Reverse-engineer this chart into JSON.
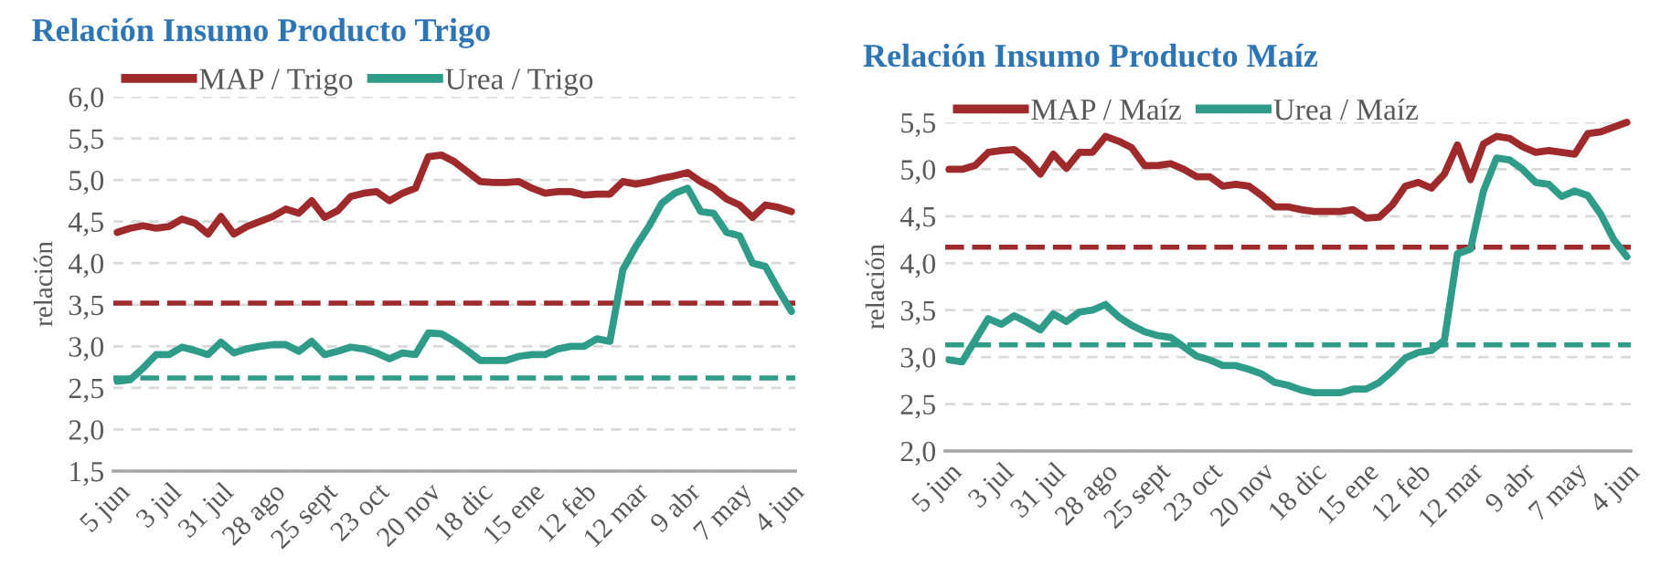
{
  "chart_data": [
    {
      "type": "line",
      "title": "Relación Insumo Producto Trigo",
      "ylabel": "relación",
      "categories": [
        "5 jun",
        null,
        null,
        null,
        "3 jul",
        null,
        null,
        null,
        "31 jul",
        null,
        null,
        null,
        "28 ago",
        null,
        null,
        null,
        "25 sept",
        null,
        null,
        null,
        "23 oct",
        null,
        null,
        null,
        "20 nov",
        null,
        null,
        null,
        "18 dic",
        null,
        null,
        null,
        "15 ene",
        null,
        null,
        null,
        "12 feb",
        null,
        null,
        null,
        "12 mar",
        null,
        null,
        null,
        "9 abr",
        null,
        null,
        null,
        "7 may",
        null,
        null,
        null,
        "4 jun"
      ],
      "series": [
        {
          "name": "MAP / Trigo",
          "color": "#9e2a2b",
          "values": [
            4.37,
            4.42,
            4.45,
            4.42,
            4.44,
            4.53,
            4.48,
            4.35,
            4.56,
            4.35,
            4.44,
            4.5,
            4.56,
            4.65,
            4.6,
            4.75,
            4.55,
            4.63,
            4.8,
            4.84,
            4.86,
            4.75,
            4.84,
            4.9,
            5.28,
            5.3,
            5.22,
            5.1,
            4.98,
            4.97,
            4.97,
            4.98,
            4.9,
            4.84,
            4.86,
            4.86,
            4.82,
            4.83,
            4.83,
            4.98,
            4.95,
            4.98,
            5.02,
            5.05,
            5.09,
            4.98,
            4.9,
            4.77,
            4.7,
            4.55,
            4.7,
            4.67,
            4.62
          ]
        },
        {
          "name": "Urea / Trigo",
          "color": "#2e9c88",
          "values": [
            2.58,
            2.6,
            2.74,
            2.9,
            2.9,
            2.99,
            2.95,
            2.9,
            3.05,
            2.92,
            2.97,
            3.0,
            3.02,
            3.02,
            2.94,
            3.06,
            2.9,
            2.94,
            2.99,
            2.97,
            2.92,
            2.85,
            2.92,
            2.9,
            3.16,
            3.15,
            3.06,
            2.95,
            2.83,
            2.83,
            2.83,
            2.88,
            2.9,
            2.9,
            2.97,
            3.0,
            3.0,
            3.09,
            3.06,
            3.92,
            4.2,
            4.44,
            4.72,
            4.84,
            4.9,
            4.62,
            4.6,
            4.37,
            4.33,
            4.0,
            3.96,
            3.68,
            3.42
          ]
        }
      ],
      "ref_lines": [
        {
          "axis": "y",
          "value": 3.52,
          "color": "#9e2a2b",
          "line_style": "dashed"
        },
        {
          "axis": "y",
          "value": 2.62,
          "color": "#2e9c88",
          "line_style": "dashed"
        }
      ],
      "ylim": [
        1.5,
        6.0
      ],
      "yticks": [
        {
          "value": 1.5,
          "label": "1,5"
        },
        {
          "value": 2.0,
          "label": "2,0"
        },
        {
          "value": 2.5,
          "label": "2,5"
        },
        {
          "value": 3.0,
          "label": "3,0"
        },
        {
          "value": 3.5,
          "label": "3,5"
        },
        {
          "value": 4.0,
          "label": "4,0"
        },
        {
          "value": 4.5,
          "label": "4,5"
        },
        {
          "value": 5.0,
          "label": "5,0"
        },
        {
          "value": 5.5,
          "label": "5,5"
        },
        {
          "value": 6.0,
          "label": "6,0"
        }
      ],
      "grid": "y",
      "legend": "top left",
      "marker": "none",
      "line_style": "solid"
    },
    {
      "type": "line",
      "title": "Relación Insumo Producto Maíz",
      "ylabel": "relación",
      "categories": [
        "5 jun",
        null,
        null,
        null,
        "3 jul",
        null,
        null,
        null,
        "31 jul",
        null,
        null,
        null,
        "28 ago",
        null,
        null,
        null,
        "25 sept",
        null,
        null,
        null,
        "23 oct",
        null,
        null,
        null,
        "20 nov",
        null,
        null,
        null,
        "18 dic",
        null,
        null,
        null,
        "15 ene",
        null,
        null,
        null,
        "12 feb",
        null,
        null,
        null,
        "12 mar",
        null,
        null,
        null,
        "9 abr",
        null,
        null,
        null,
        "7 may",
        null,
        null,
        null,
        "4 jun"
      ],
      "series": [
        {
          "name": "MAP / Maíz",
          "color": "#9e2a2b",
          "values": [
            5.0,
            5.0,
            5.04,
            5.18,
            5.2,
            5.21,
            5.1,
            4.95,
            5.16,
            5.01,
            5.18,
            5.18,
            5.35,
            5.3,
            5.23,
            5.04,
            5.04,
            5.06,
            5.0,
            4.92,
            4.92,
            4.82,
            4.84,
            4.82,
            4.72,
            4.6,
            4.6,
            4.57,
            4.55,
            4.55,
            4.55,
            4.57,
            4.48,
            4.49,
            4.62,
            4.82,
            4.86,
            4.8,
            4.95,
            5.26,
            4.89,
            5.27,
            5.35,
            5.33,
            5.24,
            5.18,
            5.2,
            5.18,
            5.16,
            5.38,
            5.4,
            5.45,
            5.5
          ]
        },
        {
          "name": "Urea / Maíz",
          "color": "#2e9c88",
          "values": [
            2.97,
            2.95,
            3.18,
            3.41,
            3.35,
            3.44,
            3.37,
            3.29,
            3.46,
            3.38,
            3.48,
            3.5,
            3.56,
            3.43,
            3.34,
            3.27,
            3.23,
            3.21,
            3.11,
            3.01,
            2.97,
            2.91,
            2.91,
            2.87,
            2.82,
            2.73,
            2.7,
            2.65,
            2.62,
            2.62,
            2.62,
            2.66,
            2.66,
            2.73,
            2.85,
            2.99,
            3.05,
            3.07,
            3.18,
            4.1,
            4.15,
            4.77,
            5.12,
            5.1,
            5.0,
            4.86,
            4.84,
            4.71,
            4.77,
            4.72,
            4.52,
            4.25,
            4.07
          ]
        }
      ],
      "ref_lines": [
        {
          "axis": "y",
          "value": 4.17,
          "color": "#9e2a2b",
          "line_style": "dashed"
        },
        {
          "axis": "y",
          "value": 3.13,
          "color": "#2e9c88",
          "line_style": "dashed"
        }
      ],
      "ylim": [
        2.0,
        5.5
      ],
      "yticks": [
        {
          "value": 2.0,
          "label": "2,0"
        },
        {
          "value": 2.5,
          "label": "2,5"
        },
        {
          "value": 3.0,
          "label": "3,0"
        },
        {
          "value": 3.5,
          "label": "3,5"
        },
        {
          "value": 4.0,
          "label": "4,0"
        },
        {
          "value": 4.5,
          "label": "4,5"
        },
        {
          "value": 5.0,
          "label": "5,0"
        },
        {
          "value": 5.5,
          "label": "5,5"
        }
      ],
      "grid": "y",
      "legend": "top left",
      "marker": "none",
      "line_style": "solid"
    }
  ]
}
